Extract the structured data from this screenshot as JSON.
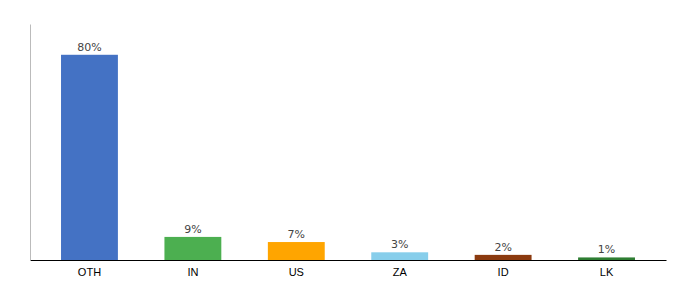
{
  "chart_data": {
    "type": "bar",
    "categories": [
      "OTH",
      "IN",
      "US",
      "ZA",
      "ID",
      "LK"
    ],
    "values": [
      80,
      9,
      7,
      3,
      2,
      1
    ],
    "value_labels": [
      "80%",
      "9%",
      "7%",
      "3%",
      "2%",
      "1%"
    ],
    "colors": [
      "#4472c4",
      "#4caf50",
      "#ffa500",
      "#87ceeb",
      "#8b3a0f",
      "#2e7d32"
    ],
    "ylim": [
      0,
      92
    ],
    "data_labels": true,
    "tick_labels": "x"
  }
}
